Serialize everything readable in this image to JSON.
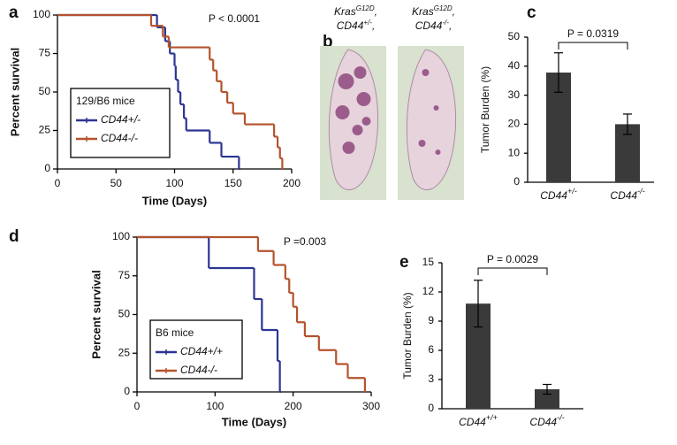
{
  "chart_data": [
    {
      "type": "survival",
      "panel": "a",
      "annotation": "P < 0.0001",
      "xlabel": "Time (Days)",
      "ylabel": "Percent survival",
      "xlim": [
        0,
        200
      ],
      "ylim": [
        0,
        100
      ],
      "xticks": [
        0,
        50,
        100,
        150,
        200
      ],
      "yticks": [
        0,
        25,
        50,
        75,
        100
      ],
      "legend_title": "129/B6 mice",
      "legend": "lower left",
      "series": [
        {
          "name": "CD44+/-",
          "color": "#2d3592",
          "x": [
            0,
            85,
            92,
            96,
            100,
            101,
            103,
            105,
            108,
            110,
            130,
            140,
            155
          ],
          "values": [
            100,
            92,
            83,
            75,
            67,
            58,
            50,
            42,
            33,
            25,
            17,
            8,
            0
          ]
        },
        {
          "name": "CD44-/-",
          "color": "#b4532e",
          "x": [
            0,
            80,
            90,
            95,
            130,
            133,
            136,
            140,
            145,
            150,
            160,
            185,
            188,
            190,
            192
          ],
          "values": [
            100,
            93,
            86,
            79,
            71,
            64,
            57,
            50,
            43,
            36,
            29,
            21,
            14,
            7,
            0
          ]
        }
      ]
    },
    {
      "type": "image",
      "panel": "b",
      "images": [
        {
          "lines": [
            {
              "text": "Kras",
              "sup": "G12D",
              "tail": ","
            },
            {
              "text": "CD44",
              "sup": "+/-",
              "tail": ","
            }
          ]
        },
        {
          "lines": [
            {
              "text": "Kras",
              "sup": "G12D",
              "tail": ","
            },
            {
              "text": "CD44",
              "sup": "-/-",
              "tail": ","
            }
          ]
        }
      ]
    },
    {
      "type": "bar",
      "panel": "c",
      "ylabel": "Tumor Burden (%)",
      "annotation": "P = 0.0319",
      "categories": [
        "CD44",
        "CD44"
      ],
      "category_superscripts": [
        "+/-",
        "-/-"
      ],
      "values": [
        37.8,
        20
      ],
      "errors": [
        6.8,
        3.5
      ],
      "color": "#3a3a3a",
      "ylim": [
        0,
        50
      ],
      "yticks": [
        0,
        10,
        20,
        30,
        40,
        50
      ]
    },
    {
      "type": "survival",
      "panel": "d",
      "annotation": "P =0.003",
      "xlabel": "Time (Days)",
      "ylabel": "Percent survival",
      "xlim": [
        0,
        300
      ],
      "ylim": [
        0,
        100
      ],
      "xticks": [
        0,
        100,
        200,
        300
      ],
      "yticks": [
        0,
        25,
        50,
        75,
        100
      ],
      "legend_title": "B6 mice",
      "legend": "lower left",
      "series": [
        {
          "name": "CD44+/+",
          "color": "#2d3592",
          "x": [
            0,
            92,
            150,
            160,
            180,
            183
          ],
          "values": [
            100,
            80,
            60,
            40,
            20,
            0
          ]
        },
        {
          "name": "CD44-/-",
          "color": "#b4532e",
          "x": [
            0,
            155,
            175,
            190,
            195,
            200,
            205,
            215,
            233,
            255,
            270,
            292
          ],
          "values": [
            100,
            91,
            82,
            73,
            64,
            55,
            45,
            36,
            27,
            18,
            9,
            0
          ]
        }
      ]
    },
    {
      "type": "bar",
      "panel": "e",
      "ylabel": "Tumor Burden (%)",
      "annotation": "P = 0.0029",
      "categories": [
        "CD44",
        "CD44"
      ],
      "category_superscripts": [
        "+/+",
        "-/-"
      ],
      "values": [
        10.8,
        2.0
      ],
      "errors": [
        2.4,
        0.5
      ],
      "color": "#3a3a3a",
      "ylim": [
        0,
        15
      ],
      "yticks": [
        0,
        3,
        6,
        9,
        12,
        15
      ]
    }
  ]
}
